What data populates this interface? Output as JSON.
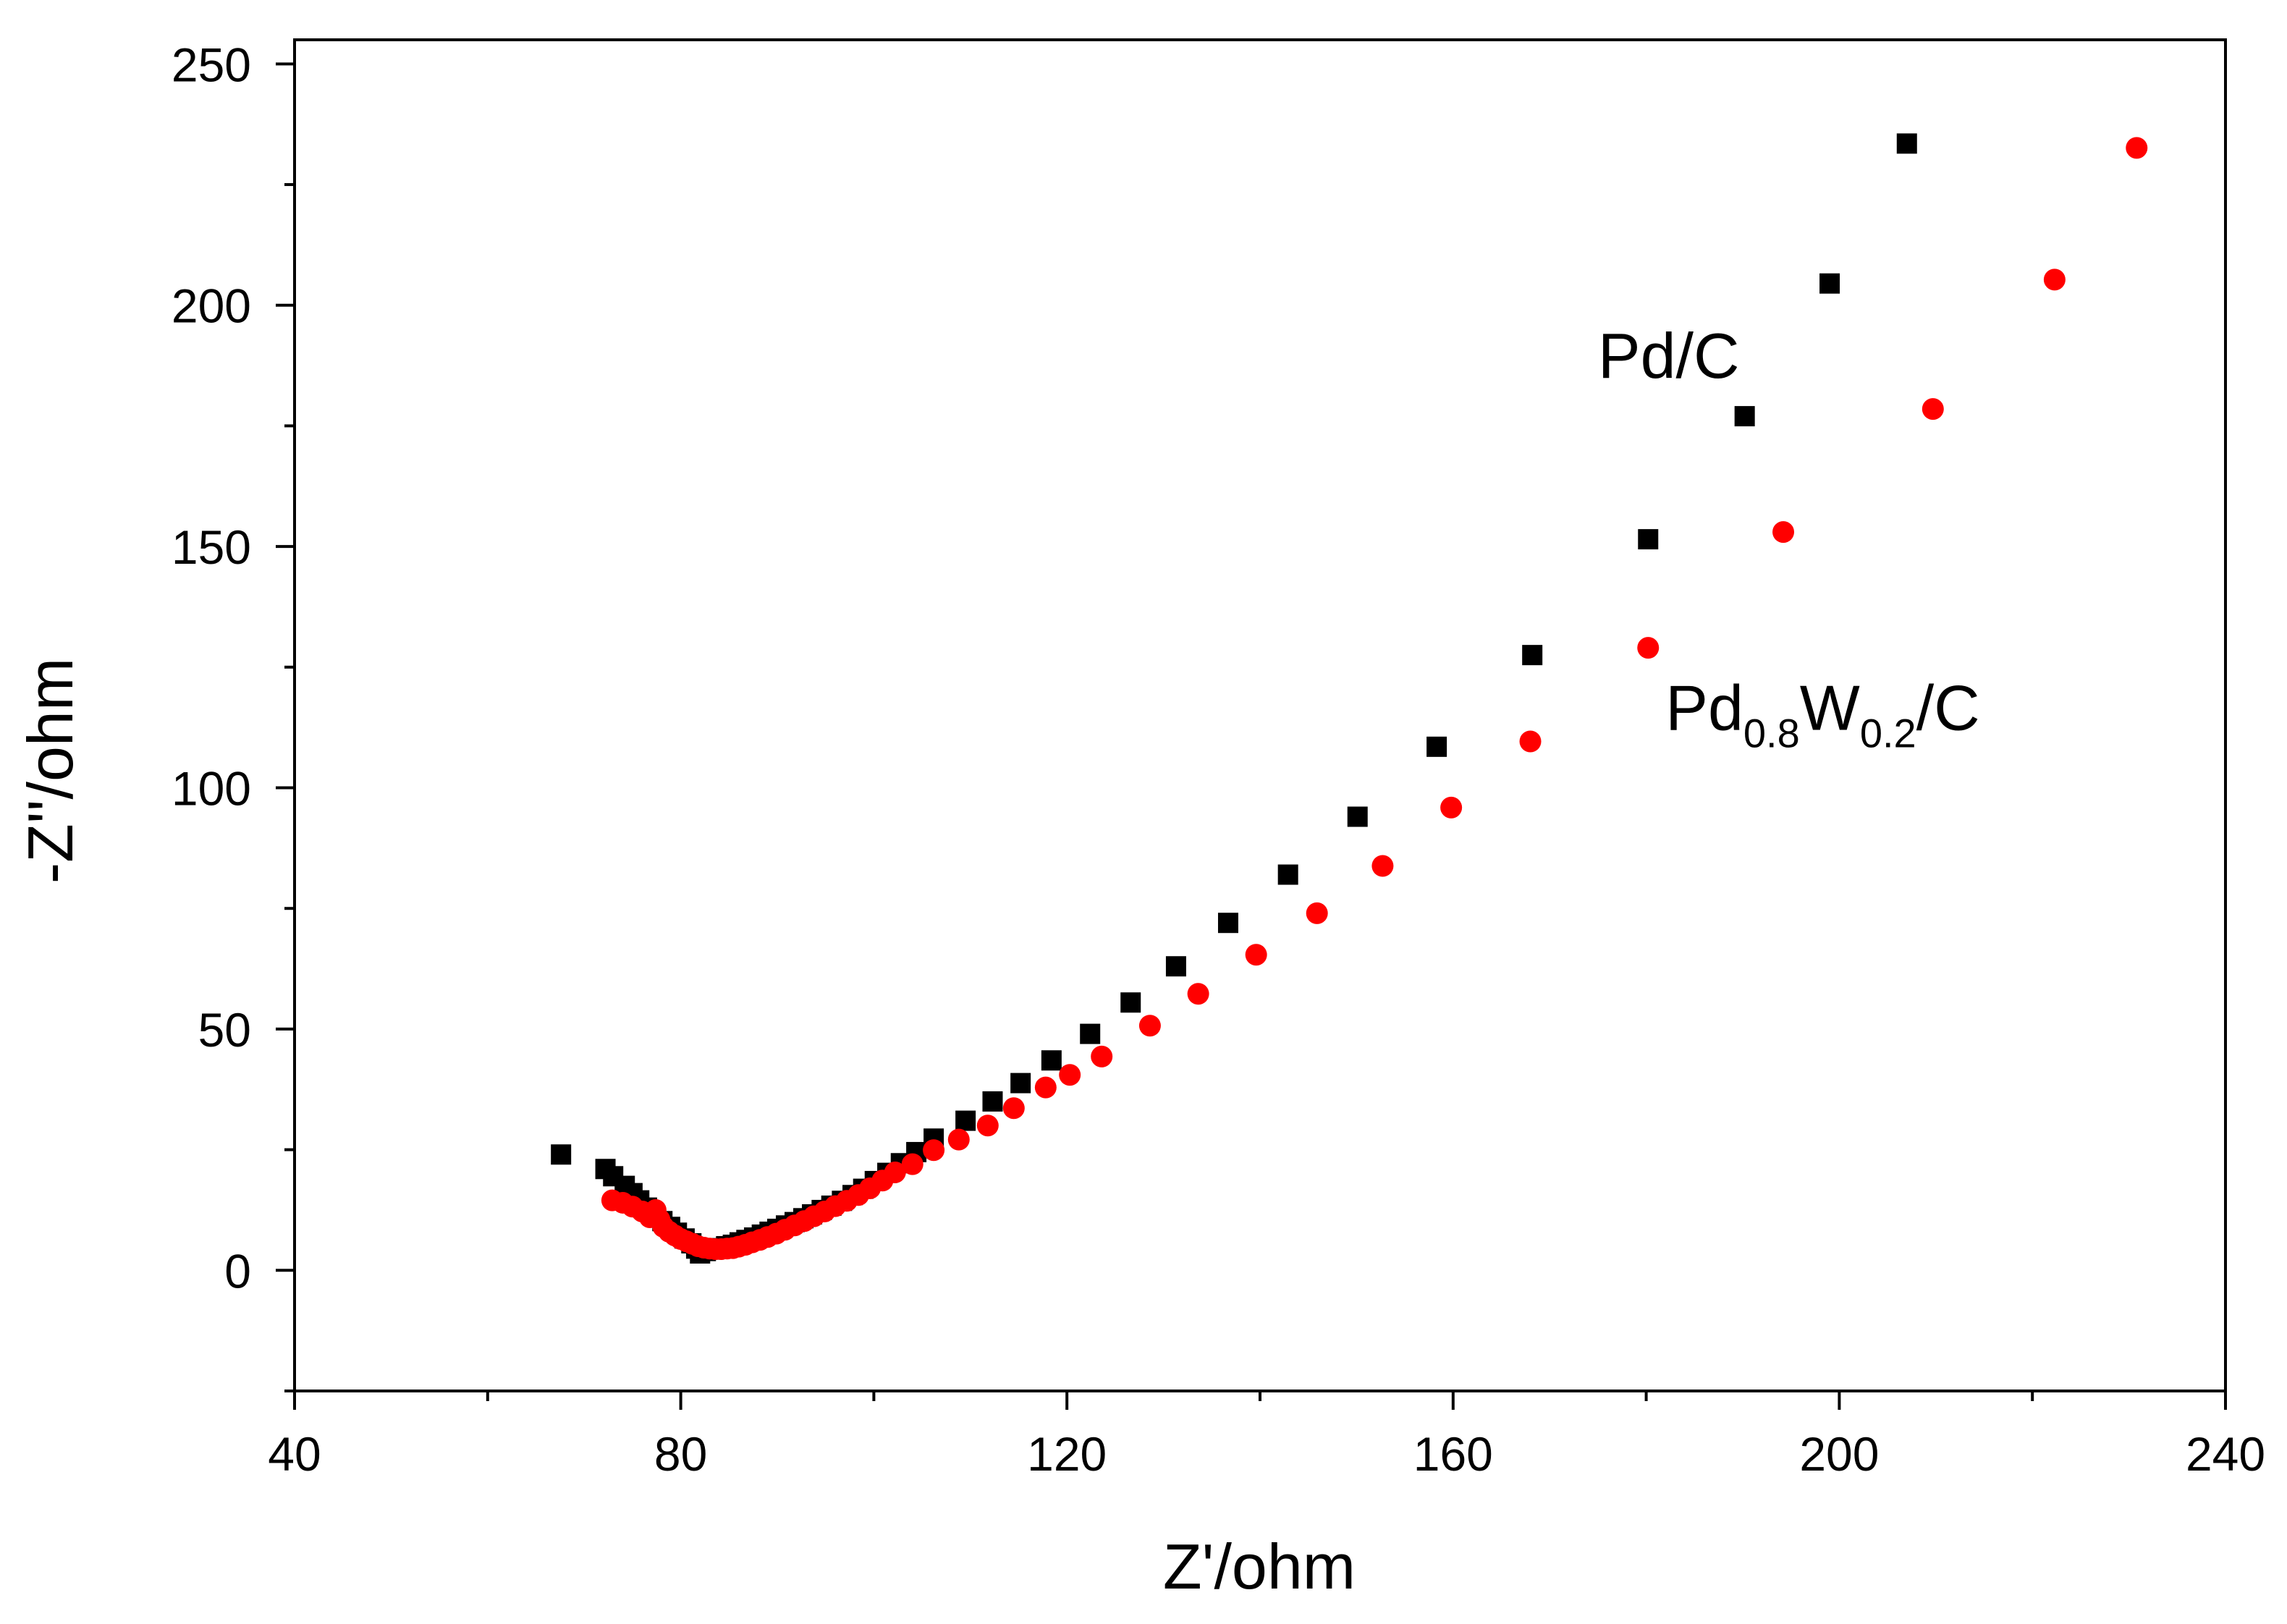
{
  "chart_data": {
    "type": "scatter",
    "title": "",
    "xlabel": "Z'/ohm",
    "ylabel": "-Z''/ohm",
    "xlim": [
      40,
      240
    ],
    "ylim": [
      -25,
      255
    ],
    "x_ticks": [
      40,
      80,
      120,
      160,
      200,
      240
    ],
    "x_tick_labels": [
      "40",
      "80",
      "120",
      "160",
      "200",
      "240"
    ],
    "x_minor_ticks": [
      60,
      100,
      140,
      180,
      220
    ],
    "y_ticks": [
      0,
      50,
      100,
      150,
      200,
      250
    ],
    "y_tick_labels": [
      "0",
      "50",
      "100",
      "150",
      "200",
      "250"
    ],
    "y_minor_ticks": [
      -25,
      25,
      75,
      125,
      175,
      225
    ],
    "grid": false,
    "legend": "none",
    "annotations": [
      {
        "series": "Pd/C",
        "text": "Pd/C",
        "x": 175,
        "y": 185
      },
      {
        "series": "Pd0.8W0.2/C",
        "text_parts": [
          "Pd",
          "0.8",
          "W",
          "0.2",
          "/C"
        ],
        "x": 182,
        "y": 112
      }
    ],
    "series": [
      {
        "name": "Pd/C",
        "marker": "square",
        "color": "#000000",
        "points": [
          [
            67.6,
            24.0
          ],
          [
            72.2,
            21.0
          ],
          [
            73.0,
            19.5
          ],
          [
            74.2,
            17.5
          ],
          [
            75.0,
            16.0
          ],
          [
            75.7,
            14.5
          ],
          [
            76.5,
            13.0
          ],
          [
            77.3,
            11.5
          ],
          [
            78.1,
            10.2
          ],
          [
            78.9,
            9.0
          ],
          [
            79.6,
            7.8
          ],
          [
            80.4,
            6.6
          ],
          [
            81.1,
            5.6
          ],
          [
            81.6,
            4.5
          ],
          [
            82.0,
            3.5
          ],
          [
            82.6,
            4.0
          ],
          [
            83.3,
            4.3
          ],
          [
            84.0,
            4.6
          ],
          [
            84.7,
            5.0
          ],
          [
            85.4,
            5.3
          ],
          [
            86.1,
            5.8
          ],
          [
            86.8,
            6.3
          ],
          [
            87.6,
            6.8
          ],
          [
            88.4,
            7.4
          ],
          [
            89.2,
            8.0
          ],
          [
            90.0,
            8.6
          ],
          [
            90.9,
            9.3
          ],
          [
            91.8,
            10.0
          ],
          [
            92.7,
            10.8
          ],
          [
            93.6,
            11.6
          ],
          [
            94.6,
            12.5
          ],
          [
            95.6,
            13.4
          ],
          [
            96.7,
            14.4
          ],
          [
            97.8,
            15.6
          ],
          [
            98.9,
            16.9
          ],
          [
            100.1,
            18.5
          ],
          [
            101.4,
            20.2
          ],
          [
            102.8,
            22.2
          ],
          [
            104.4,
            24.5
          ],
          [
            106.2,
            27.3
          ],
          [
            109.5,
            31.0
          ],
          [
            112.3,
            35.0
          ],
          [
            115.2,
            38.8
          ],
          [
            118.4,
            43.5
          ],
          [
            122.4,
            49.0
          ],
          [
            126.6,
            55.5
          ],
          [
            131.3,
            63.0
          ],
          [
            136.7,
            72.0
          ],
          [
            142.9,
            82.0
          ],
          [
            150.1,
            94.0
          ],
          [
            158.3,
            108.5
          ],
          [
            168.2,
            127.5
          ],
          [
            180.2,
            151.5
          ],
          [
            190.2,
            177.0
          ],
          [
            199.0,
            204.5
          ],
          [
            207.0,
            233.5
          ]
        ]
      },
      {
        "name": "Pd0.8W0.2/C",
        "marker": "circle",
        "color": "#ff0000",
        "points": [
          [
            72.9,
            14.5
          ],
          [
            74.0,
            14.0
          ],
          [
            75.0,
            13.2
          ],
          [
            76.0,
            12.2
          ],
          [
            76.8,
            11.0
          ],
          [
            77.4,
            12.5
          ],
          [
            77.8,
            10.5
          ],
          [
            78.2,
            9.0
          ],
          [
            78.8,
            8.0
          ],
          [
            79.4,
            7.2
          ],
          [
            80.0,
            6.5
          ],
          [
            80.6,
            6.0
          ],
          [
            81.2,
            5.5
          ],
          [
            81.8,
            5.0
          ],
          [
            82.4,
            4.7
          ],
          [
            83.0,
            4.5
          ],
          [
            83.6,
            4.4
          ],
          [
            84.2,
            4.4
          ],
          [
            84.8,
            4.5
          ],
          [
            85.4,
            4.6
          ],
          [
            86.0,
            4.9
          ],
          [
            86.7,
            5.3
          ],
          [
            87.4,
            5.8
          ],
          [
            88.2,
            6.3
          ],
          [
            89.0,
            6.9
          ],
          [
            89.9,
            7.6
          ],
          [
            90.8,
            8.4
          ],
          [
            91.8,
            9.3
          ],
          [
            92.8,
            10.2
          ],
          [
            93.8,
            11.2
          ],
          [
            94.9,
            12.2
          ],
          [
            96.0,
            13.3
          ],
          [
            97.2,
            14.4
          ],
          [
            98.4,
            15.6
          ],
          [
            99.6,
            17.0
          ],
          [
            100.9,
            18.6
          ],
          [
            102.2,
            20.3
          ],
          [
            104.0,
            22.0
          ],
          [
            106.2,
            24.9
          ],
          [
            108.8,
            27.1
          ],
          [
            111.8,
            30.0
          ],
          [
            114.5,
            33.6
          ],
          [
            117.8,
            37.9
          ],
          [
            120.3,
            40.5
          ],
          [
            123.6,
            44.3
          ],
          [
            128.6,
            50.7
          ],
          [
            133.6,
            57.3
          ],
          [
            139.6,
            65.4
          ],
          [
            145.9,
            74.0
          ],
          [
            152.7,
            83.8
          ],
          [
            159.8,
            95.9
          ],
          [
            168.0,
            109.6
          ],
          [
            180.2,
            129.0
          ],
          [
            194.2,
            153.0
          ],
          [
            209.7,
            178.5
          ],
          [
            222.3,
            205.3
          ],
          [
            230.8,
            232.6
          ]
        ]
      }
    ]
  }
}
